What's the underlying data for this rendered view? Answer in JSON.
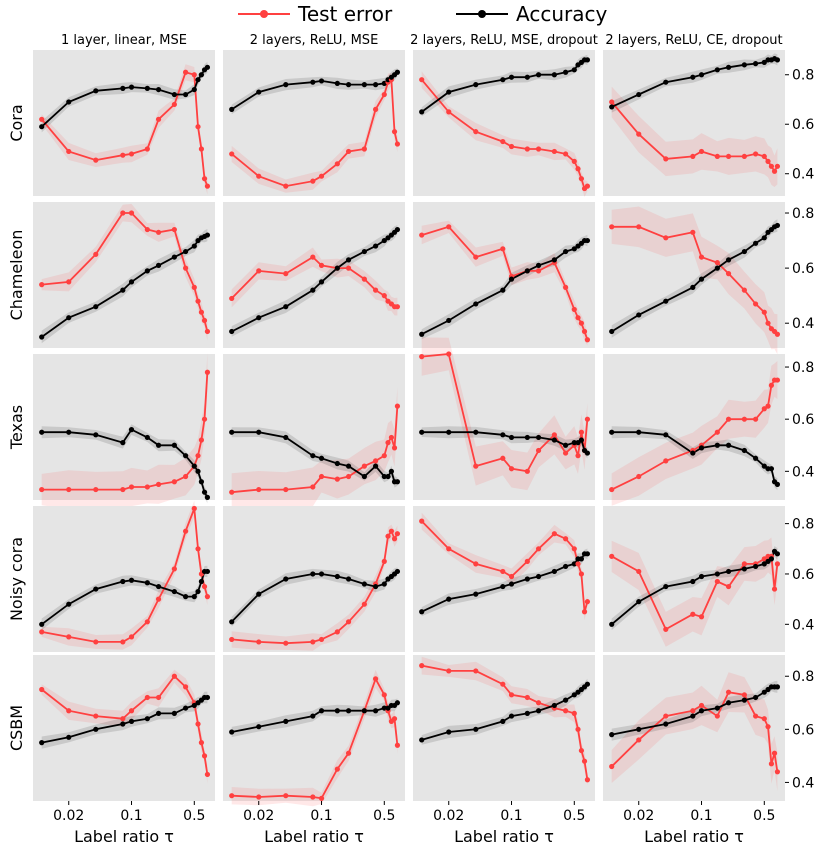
{
  "legend": [
    {
      "name": "Test error",
      "color": "#ff4040"
    },
    {
      "name": "Accuracy",
      "color": "#000000"
    }
  ],
  "colors": {
    "panel_bg": "#e5e5e5",
    "test_error": "#ff4040",
    "accuracy": "#000000"
  },
  "chart_data": {
    "type": "line",
    "xlabel": "Label ratio τ",
    "xscale": "log",
    "xlim": [
      0.008,
      0.85
    ],
    "x_ticks": [
      {
        "value": 0.02,
        "label": "0.02"
      },
      {
        "value": 0.1,
        "label": "0.1"
      },
      {
        "value": 0.5,
        "label": "0.5"
      }
    ],
    "y_ticks": [
      {
        "value": 0.4,
        "label": "0.4"
      },
      {
        "value": 0.6,
        "label": "0.6"
      },
      {
        "value": 0.8,
        "label": "0.8"
      }
    ],
    "columns": [
      "1 layer, linear, MSE",
      "2 layers, ReLU, MSE",
      "2 layers, ReLU, MSE, dropout",
      "2 layers, ReLU, CE, dropout"
    ],
    "rows": [
      {
        "name": "Cora",
        "ylim": [
          0.31,
          0.9
        ]
      },
      {
        "name": "Chameleon",
        "ylim": [
          0.31,
          0.84
        ]
      },
      {
        "name": "Texas",
        "ylim": [
          0.29,
          0.85
        ]
      },
      {
        "name": "Noisy cora",
        "ylim": [
          0.29,
          0.87
        ]
      },
      {
        "name": "CSBM",
        "ylim": [
          0.33,
          0.88
        ]
      }
    ],
    "x_grid": {
      "dense": [
        0.01,
        0.02,
        0.04,
        0.08,
        0.1,
        0.15,
        0.2,
        0.3,
        0.4,
        0.5,
        0.55,
        0.6,
        0.65,
        0.7
      ],
      "sparse": [
        0.01,
        0.02,
        0.04,
        0.08,
        0.1,
        0.15,
        0.2,
        0.3,
        0.4,
        0.5,
        0.55,
        0.6,
        0.65,
        0.7
      ]
    },
    "panels": [
      [
        {
          "error": [
            0.62,
            0.49,
            0.455,
            0.475,
            0.48,
            0.5,
            0.62,
            0.68,
            0.81,
            0.8,
            0.59,
            0.5,
            0.38,
            0.35
          ],
          "accuracy": [
            0.59,
            0.69,
            0.735,
            0.745,
            0.75,
            0.745,
            0.74,
            0.72,
            0.72,
            0.74,
            0.78,
            0.8,
            0.82,
            0.83
          ]
        },
        {
          "error": [
            0.48,
            0.39,
            0.35,
            0.37,
            0.39,
            0.44,
            0.49,
            0.5,
            0.66,
            0.72,
            0.77,
            0.78,
            0.57,
            0.52
          ],
          "accuracy": [
            0.66,
            0.73,
            0.76,
            0.77,
            0.775,
            0.765,
            0.76,
            0.76,
            0.76,
            0.765,
            0.78,
            0.79,
            0.8,
            0.81
          ]
        },
        {
          "error": [
            0.78,
            0.65,
            0.57,
            0.53,
            0.51,
            0.5,
            0.5,
            0.49,
            0.48,
            0.45,
            0.42,
            0.38,
            0.34,
            0.35
          ],
          "accuracy": [
            0.65,
            0.73,
            0.76,
            0.78,
            0.79,
            0.79,
            0.8,
            0.8,
            0.81,
            0.82,
            0.84,
            0.85,
            0.86,
            0.86
          ]
        },
        {
          "error": [
            0.69,
            0.56,
            0.46,
            0.47,
            0.49,
            0.47,
            0.47,
            0.47,
            0.48,
            0.47,
            0.45,
            0.43,
            0.41,
            0.43
          ],
          "accuracy": [
            0.67,
            0.72,
            0.77,
            0.79,
            0.8,
            0.82,
            0.83,
            0.84,
            0.845,
            0.85,
            0.86,
            0.86,
            0.865,
            0.86
          ]
        }
      ],
      [
        {
          "error": [
            0.54,
            0.55,
            0.65,
            0.8,
            0.8,
            0.74,
            0.73,
            0.74,
            0.6,
            0.53,
            0.48,
            0.44,
            0.41,
            0.37
          ],
          "accuracy": [
            0.35,
            0.42,
            0.46,
            0.52,
            0.55,
            0.59,
            0.61,
            0.64,
            0.66,
            0.68,
            0.7,
            0.71,
            0.715,
            0.72
          ]
        },
        {
          "error": [
            0.49,
            0.59,
            0.58,
            0.64,
            0.61,
            0.6,
            0.6,
            0.56,
            0.52,
            0.5,
            0.48,
            0.47,
            0.46,
            0.46
          ],
          "accuracy": [
            0.37,
            0.42,
            0.46,
            0.52,
            0.55,
            0.6,
            0.63,
            0.66,
            0.68,
            0.7,
            0.71,
            0.72,
            0.73,
            0.74
          ]
        },
        {
          "error": [
            0.72,
            0.75,
            0.64,
            0.67,
            0.57,
            0.59,
            0.59,
            0.62,
            0.53,
            0.45,
            0.42,
            0.4,
            0.37,
            0.34
          ],
          "accuracy": [
            0.36,
            0.41,
            0.47,
            0.52,
            0.56,
            0.59,
            0.61,
            0.63,
            0.66,
            0.67,
            0.68,
            0.69,
            0.7,
            0.7
          ]
        },
        {
          "error": [
            0.75,
            0.75,
            0.71,
            0.73,
            0.64,
            0.62,
            0.58,
            0.52,
            0.47,
            0.44,
            0.4,
            0.38,
            0.37,
            0.36
          ],
          "accuracy": [
            0.37,
            0.43,
            0.48,
            0.53,
            0.56,
            0.6,
            0.63,
            0.66,
            0.69,
            0.71,
            0.73,
            0.74,
            0.75,
            0.755
          ]
        }
      ],
      [
        {
          "error": [
            0.33,
            0.33,
            0.33,
            0.33,
            0.34,
            0.34,
            0.35,
            0.36,
            0.38,
            0.42,
            0.46,
            0.52,
            0.6,
            0.78
          ],
          "accuracy": [
            0.55,
            0.55,
            0.54,
            0.51,
            0.56,
            0.53,
            0.5,
            0.5,
            0.46,
            0.42,
            0.4,
            0.36,
            0.32,
            0.3
          ]
        },
        {
          "error": [
            0.32,
            0.33,
            0.33,
            0.34,
            0.38,
            0.37,
            0.38,
            0.42,
            0.44,
            0.46,
            0.51,
            0.53,
            0.49,
            0.65
          ],
          "accuracy": [
            0.55,
            0.55,
            0.53,
            0.46,
            0.45,
            0.43,
            0.42,
            0.38,
            0.42,
            0.38,
            0.38,
            0.4,
            0.36,
            0.36
          ]
        },
        {
          "error": [
            0.84,
            0.85,
            0.42,
            0.45,
            0.41,
            0.4,
            0.48,
            0.54,
            0.47,
            0.5,
            0.46,
            0.55,
            0.48,
            0.6
          ],
          "accuracy": [
            0.55,
            0.55,
            0.55,
            0.54,
            0.53,
            0.53,
            0.53,
            0.52,
            0.5,
            0.51,
            0.51,
            0.52,
            0.48,
            0.47
          ]
        },
        {
          "error": [
            0.33,
            0.38,
            0.44,
            0.48,
            0.5,
            0.55,
            0.6,
            0.6,
            0.6,
            0.64,
            0.65,
            0.73,
            0.75,
            0.75
          ],
          "accuracy": [
            0.55,
            0.55,
            0.54,
            0.47,
            0.49,
            0.5,
            0.5,
            0.48,
            0.45,
            0.42,
            0.41,
            0.41,
            0.36,
            0.35
          ]
        }
      ],
      [
        {
          "error": [
            0.37,
            0.35,
            0.33,
            0.33,
            0.35,
            0.41,
            0.5,
            0.62,
            0.77,
            0.86,
            0.7,
            0.6,
            0.55,
            0.51
          ],
          "accuracy": [
            0.4,
            0.48,
            0.54,
            0.57,
            0.575,
            0.565,
            0.55,
            0.53,
            0.51,
            0.51,
            0.53,
            0.57,
            0.61,
            0.61
          ]
        },
        {
          "error": [
            0.34,
            0.33,
            0.325,
            0.33,
            0.34,
            0.37,
            0.41,
            0.48,
            0.56,
            0.65,
            0.75,
            0.77,
            0.74,
            0.76
          ],
          "accuracy": [
            0.41,
            0.52,
            0.58,
            0.6,
            0.6,
            0.59,
            0.58,
            0.56,
            0.55,
            0.56,
            0.58,
            0.59,
            0.6,
            0.61
          ]
        },
        {
          "error": [
            0.81,
            0.7,
            0.64,
            0.61,
            0.59,
            0.65,
            0.7,
            0.76,
            0.74,
            0.7,
            0.64,
            0.6,
            0.45,
            0.49
          ],
          "accuracy": [
            0.45,
            0.5,
            0.52,
            0.55,
            0.56,
            0.58,
            0.59,
            0.61,
            0.63,
            0.64,
            0.66,
            0.66,
            0.68,
            0.68
          ]
        },
        {
          "error": [
            0.67,
            0.61,
            0.38,
            0.44,
            0.43,
            0.57,
            0.55,
            0.64,
            0.64,
            0.66,
            0.67,
            0.67,
            0.54,
            0.64
          ],
          "accuracy": [
            0.4,
            0.49,
            0.55,
            0.57,
            0.59,
            0.6,
            0.61,
            0.62,
            0.63,
            0.64,
            0.65,
            0.66,
            0.69,
            0.68
          ]
        }
      ],
      [
        {
          "error": [
            0.75,
            0.67,
            0.65,
            0.64,
            0.67,
            0.72,
            0.72,
            0.8,
            0.76,
            0.7,
            0.62,
            0.55,
            0.5,
            0.43
          ],
          "accuracy": [
            0.55,
            0.57,
            0.6,
            0.62,
            0.63,
            0.64,
            0.66,
            0.66,
            0.68,
            0.69,
            0.7,
            0.71,
            0.72,
            0.72
          ]
        },
        {
          "error": [
            0.35,
            0.345,
            0.35,
            0.345,
            0.34,
            0.45,
            0.51,
            0.67,
            0.79,
            0.73,
            0.67,
            0.63,
            0.64,
            0.54
          ],
          "accuracy": [
            0.59,
            0.61,
            0.63,
            0.65,
            0.67,
            0.67,
            0.67,
            0.67,
            0.67,
            0.68,
            0.68,
            0.69,
            0.69,
            0.7
          ]
        },
        {
          "error": [
            0.84,
            0.82,
            0.82,
            0.77,
            0.73,
            0.72,
            0.7,
            0.68,
            0.67,
            0.66,
            0.6,
            0.52,
            0.48,
            0.41
          ],
          "accuracy": [
            0.56,
            0.59,
            0.6,
            0.63,
            0.65,
            0.66,
            0.67,
            0.69,
            0.71,
            0.73,
            0.74,
            0.75,
            0.76,
            0.77
          ]
        },
        {
          "error": [
            0.46,
            0.56,
            0.65,
            0.67,
            0.69,
            0.65,
            0.74,
            0.73,
            0.65,
            0.64,
            0.61,
            0.47,
            0.51,
            0.44
          ],
          "accuracy": [
            0.58,
            0.6,
            0.62,
            0.65,
            0.67,
            0.68,
            0.7,
            0.71,
            0.72,
            0.74,
            0.75,
            0.76,
            0.76,
            0.76
          ]
        }
      ]
    ]
  }
}
